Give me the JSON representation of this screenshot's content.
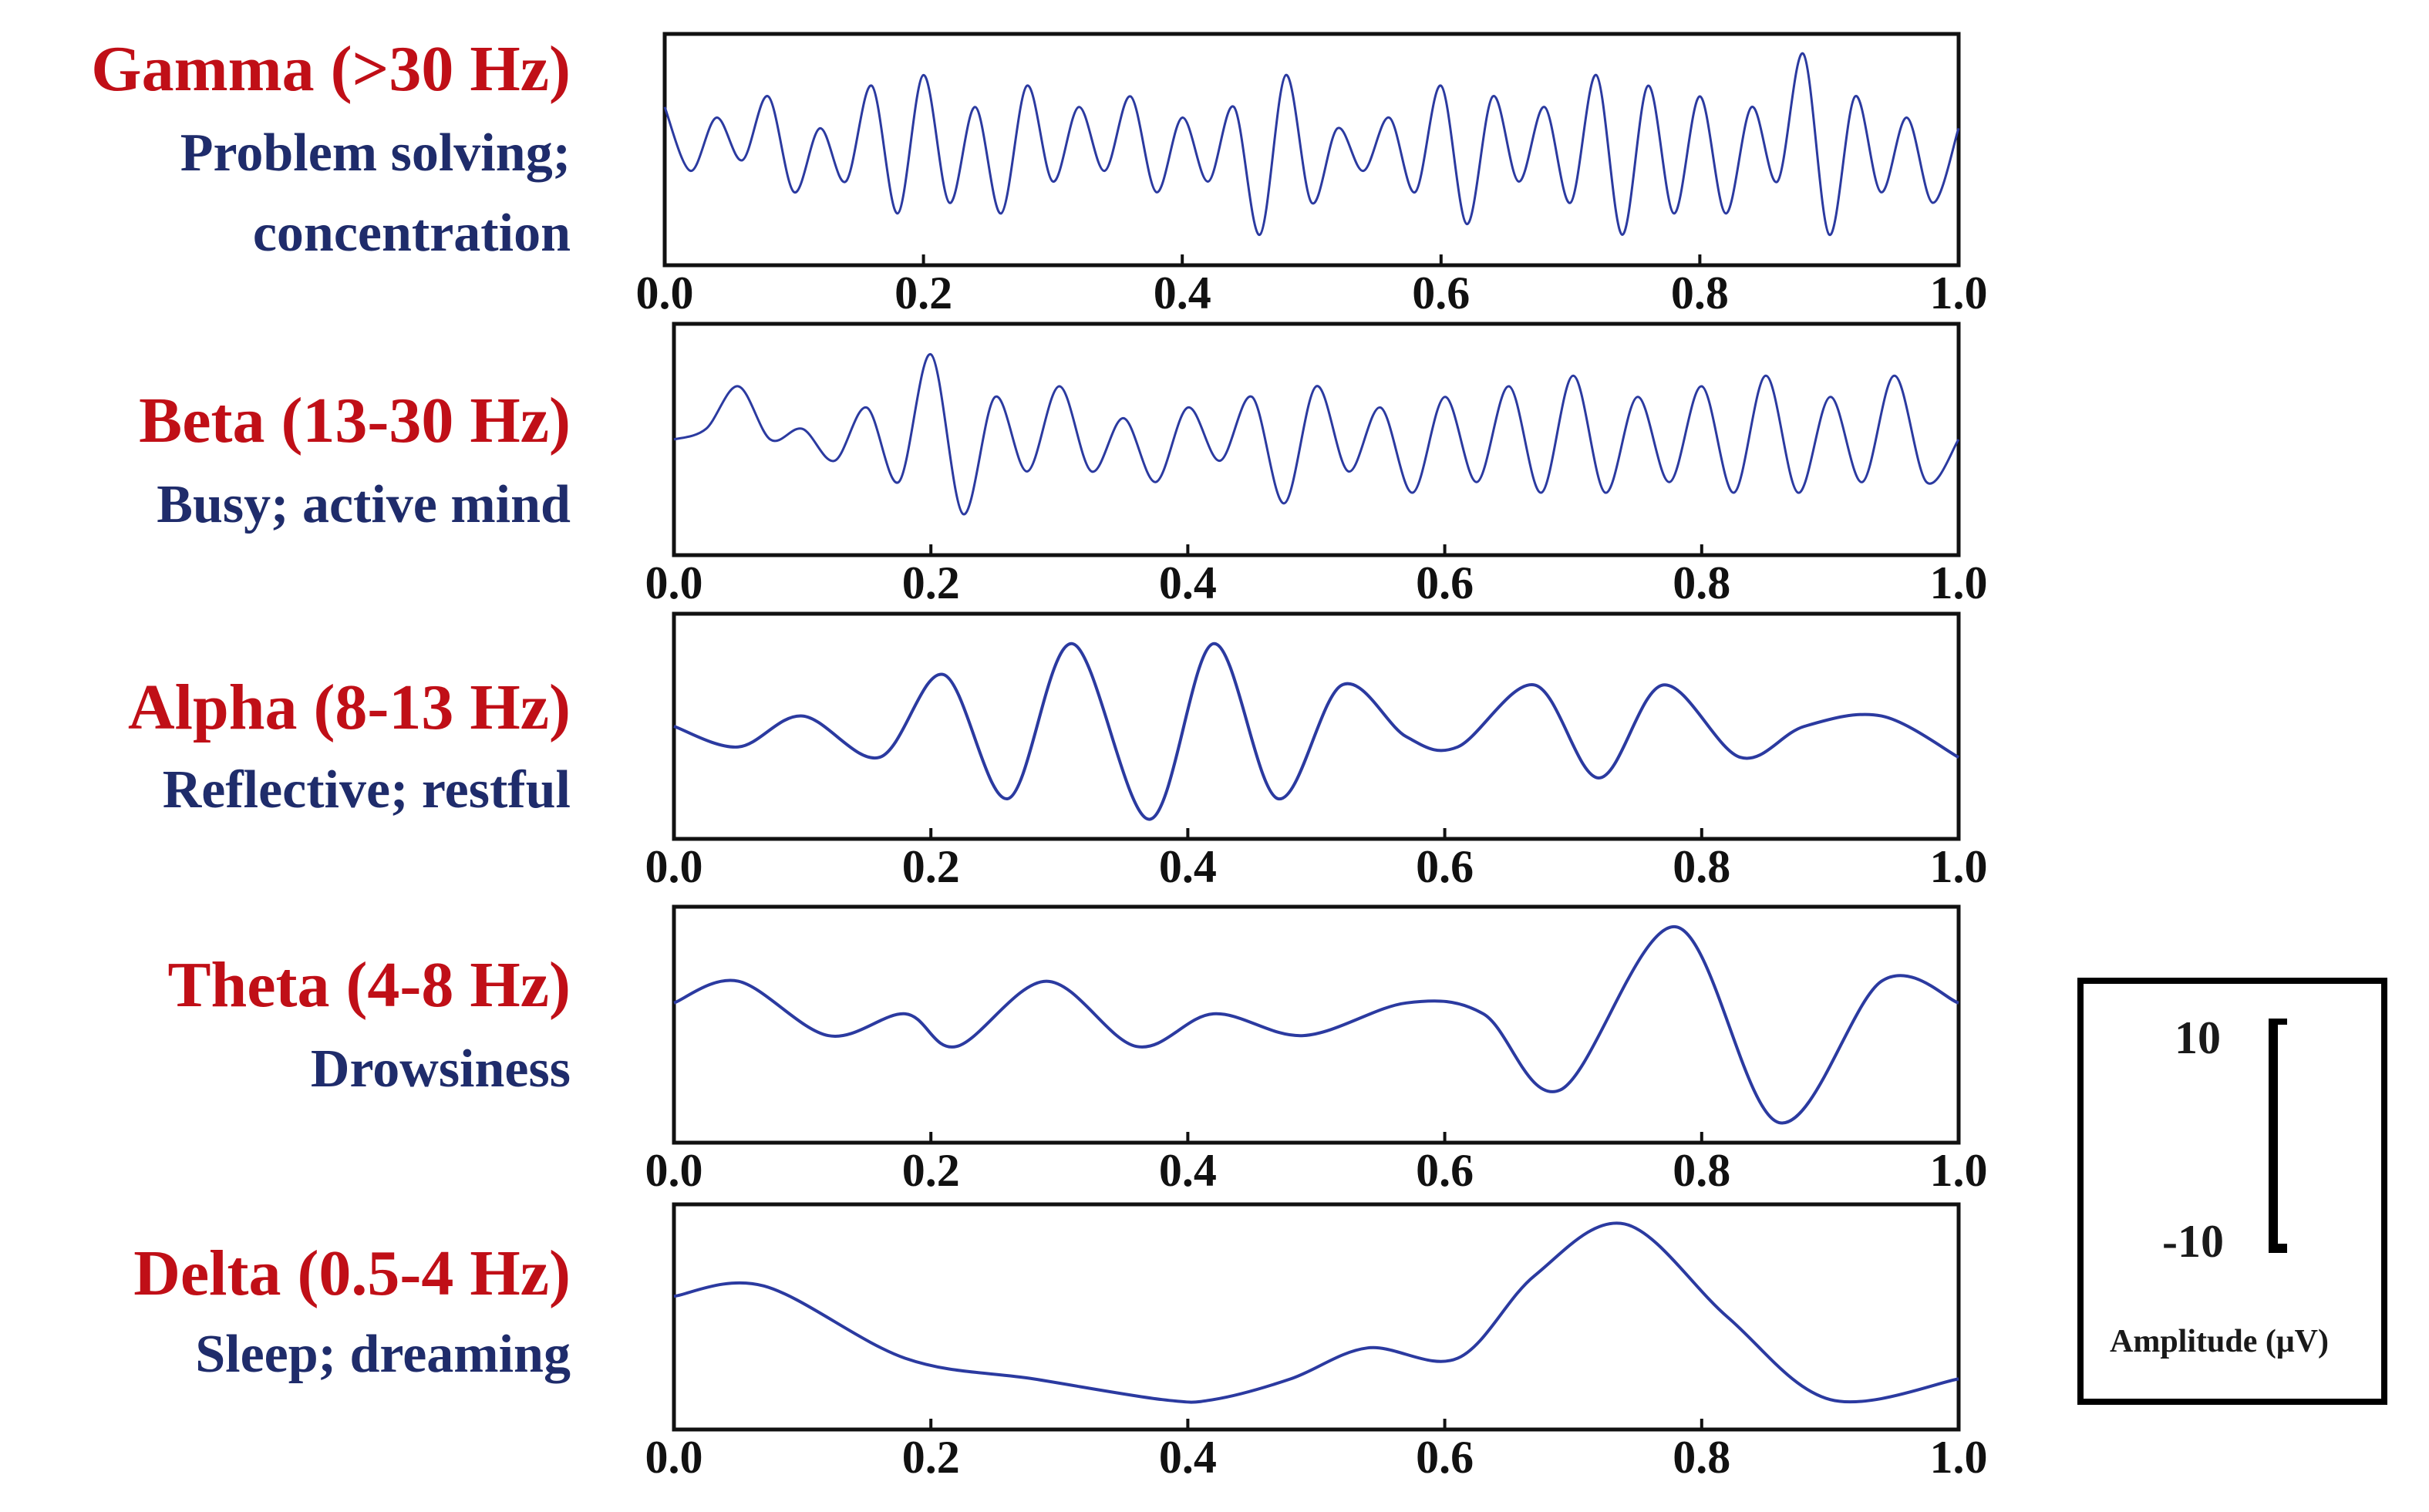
{
  "colors": {
    "title": "#c00f17",
    "description": "#1f2c6b",
    "trace": "#2b3aa0",
    "axis": "#111111"
  },
  "chart_data": [
    {
      "type": "line",
      "band_title": "Gamma (>30 Hz)",
      "description_lines": [
        "Problem solving;",
        "concentration"
      ],
      "xlim": [
        0.0,
        1.0
      ],
      "ylim": [
        -10,
        10
      ],
      "xticks": [
        "0.0",
        "0.2",
        "0.4",
        "0.6",
        "0.8",
        "1.0"
      ],
      "series": [
        {
          "x": [
            0.0,
            0.02,
            0.04,
            0.06,
            0.08,
            0.1,
            0.12,
            0.14,
            0.16,
            0.18,
            0.2,
            0.22,
            0.24,
            0.26,
            0.28,
            0.3,
            0.32,
            0.34,
            0.36,
            0.38,
            0.4,
            0.42,
            0.44,
            0.46,
            0.48,
            0.5,
            0.52,
            0.54,
            0.56,
            0.58,
            0.6,
            0.62,
            0.64,
            0.66,
            0.68,
            0.7,
            0.72,
            0.74,
            0.76,
            0.78,
            0.8,
            0.82,
            0.84,
            0.86,
            0.88,
            0.9,
            0.92,
            0.94,
            0.96,
            0.98,
            1.0
          ],
          "y": [
            4,
            -2,
            3,
            -1,
            5,
            -4,
            2,
            -3,
            6,
            -6,
            7,
            -5,
            4,
            -6,
            6,
            -3,
            4,
            -2,
            5,
            -4,
            3,
            -3,
            4,
            -8,
            7,
            -5,
            2,
            -2,
            3,
            -4,
            6,
            -7,
            5,
            -3,
            4,
            -5,
            7,
            -8,
            6,
            -6,
            5,
            -6,
            4,
            -3,
            9,
            -8,
            5,
            -4,
            3,
            -5,
            2
          ]
        }
      ]
    },
    {
      "type": "line",
      "band_title": "Beta (13-30 Hz)",
      "description_lines": [
        "Busy; active mind"
      ],
      "xlim": [
        0.0,
        1.0
      ],
      "ylim": [
        -10,
        10
      ],
      "xticks": [
        "0.0",
        "0.2",
        "0.4",
        "0.6",
        "0.8",
        "1.0"
      ],
      "series": [
        {
          "x": [
            0.0,
            0.025,
            0.05,
            0.075,
            0.1,
            0.125,
            0.15,
            0.175,
            0.2,
            0.225,
            0.25,
            0.275,
            0.3,
            0.325,
            0.35,
            0.375,
            0.4,
            0.425,
            0.45,
            0.475,
            0.5,
            0.525,
            0.55,
            0.575,
            0.6,
            0.625,
            0.65,
            0.675,
            0.7,
            0.725,
            0.75,
            0.775,
            0.8,
            0.825,
            0.85,
            0.875,
            0.9,
            0.925,
            0.95,
            0.975,
            1.0
          ],
          "y": [
            0,
            1,
            5,
            0,
            1,
            -2,
            3,
            -4,
            8,
            -7,
            4,
            -3,
            5,
            -3,
            2,
            -4,
            3,
            -2,
            4,
            -6,
            5,
            -3,
            3,
            -5,
            4,
            -4,
            5,
            -5,
            6,
            -5,
            4,
            -4,
            5,
            -5,
            6,
            -5,
            4,
            -4,
            6,
            -4,
            0
          ]
        }
      ]
    },
    {
      "type": "line",
      "band_title": "Alpha (8-13 Hz)",
      "description_lines": [
        "Reflective; restful"
      ],
      "xlim": [
        0.0,
        1.0
      ],
      "ylim": [
        -10,
        10
      ],
      "xticks": [
        "0.0",
        "0.2",
        "0.4",
        "0.6",
        "0.8",
        "1.0"
      ],
      "series": [
        {
          "x": [
            0.0,
            0.05,
            0.1,
            0.16,
            0.21,
            0.26,
            0.31,
            0.37,
            0.42,
            0.47,
            0.52,
            0.57,
            0.61,
            0.67,
            0.72,
            0.77,
            0.83,
            0.88,
            0.94,
            1.0
          ],
          "y": [
            0,
            -2,
            1,
            -3,
            5,
            -7,
            8,
            -9,
            8,
            -7,
            4,
            -1,
            -2,
            4,
            -5,
            4,
            -3,
            0,
            1,
            -3
          ]
        }
      ]
    },
    {
      "type": "line",
      "band_title": "Theta (4-8 Hz)",
      "description_lines": [
        "Drowsiness"
      ],
      "xlim": [
        0.0,
        1.0
      ],
      "ylim": [
        -10,
        10
      ],
      "xticks": [
        "0.0",
        "0.2",
        "0.4",
        "0.6",
        "0.8",
        "1.0"
      ],
      "series": [
        {
          "x": [
            0.0,
            0.05,
            0.12,
            0.18,
            0.22,
            0.29,
            0.36,
            0.42,
            0.49,
            0.57,
            0.63,
            0.69,
            0.78,
            0.86,
            0.94,
            1.0
          ],
          "y": [
            2,
            4,
            -1,
            1,
            -2,
            4,
            -2,
            1,
            -1,
            2,
            1,
            -6,
            9,
            -9,
            4,
            2
          ]
        }
      ]
    },
    {
      "type": "line",
      "band_title": "Delta (0.5-4 Hz)",
      "description_lines": [
        "Sleep; dreaming"
      ],
      "xlim": [
        0.0,
        1.0
      ],
      "ylim": [
        -10,
        10
      ],
      "xticks": [
        "0.0",
        "0.2",
        "0.4",
        "0.6",
        "0.8",
        "1.0"
      ],
      "series": [
        {
          "x": [
            0.0,
            0.07,
            0.18,
            0.28,
            0.38,
            0.42,
            0.48,
            0.54,
            0.61,
            0.67,
            0.74,
            0.82,
            0.9,
            1.0
          ],
          "y": [
            2,
            3,
            -4,
            -6,
            -8,
            -8,
            -6,
            -3,
            -4,
            4,
            9,
            0,
            -8,
            -6
          ]
        }
      ]
    }
  ],
  "scale_bar": {
    "top_label": "10",
    "bottom_label": "-10",
    "caption": "Amplitude (μV)"
  }
}
